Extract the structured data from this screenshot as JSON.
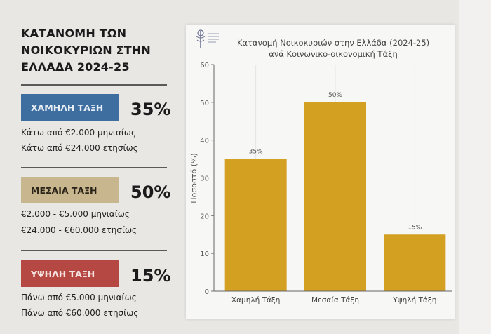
{
  "panel": {
    "title_lines": [
      "ΚΑΤΑΝΟΜΗ ΤΩΝ",
      "ΝΟΙΚΟΚΥΡΙΩΝ ΣΤΗΝ",
      "ΕΛΛΑΔΑ 2024-25"
    ],
    "classes": [
      {
        "label": "ΧΑΜΗΛΗ ΤΑΞΗ",
        "percent": "35%",
        "color": "#3e6e9f",
        "text_color": "#e8eef5",
        "lines": [
          "Κάτω από €2.000 μηνιαίως",
          "Κάτω από €24.000 ετησίως"
        ]
      },
      {
        "label": "ΜΕΣΑΙΑ ΤΑΞΗ",
        "percent": "50%",
        "color": "#c8b68f",
        "text_color": "#2a2418",
        "lines": [
          "€2.000 - €5.000 μηνιαίως",
          "€24.000 - €60.000 ετησίως"
        ]
      },
      {
        "label": "ΥΨΗΛΗ ΤΑΞΗ",
        "percent": "15%",
        "color": "#b54842",
        "text_color": "#f5e4e2",
        "lines": [
          "Πάνω από €5.000 μηνιαίως",
          "Πάνω από €60.000 ετησίως"
        ]
      }
    ]
  },
  "chart_data": {
    "type": "bar",
    "title": "Κατανομή Νοικοκυριών στην Ελλάδα (2024-25)",
    "subtitle": "ανά Κοινωνικο-οικονομική Τάξη",
    "categories": [
      "Χαμηλή Τάξη",
      "Μεσαία Τάξη",
      "Υψηλή Τάξη"
    ],
    "values": [
      35,
      50,
      15
    ],
    "data_labels": [
      "35%",
      "50%",
      "15%"
    ],
    "xlabel": "",
    "ylabel": "Ποσοστό (%)",
    "ylim": [
      0,
      60
    ],
    "yticks": [
      0,
      10,
      20,
      30,
      40,
      50,
      60
    ],
    "grid": true,
    "bar_color": "#d4a021"
  }
}
